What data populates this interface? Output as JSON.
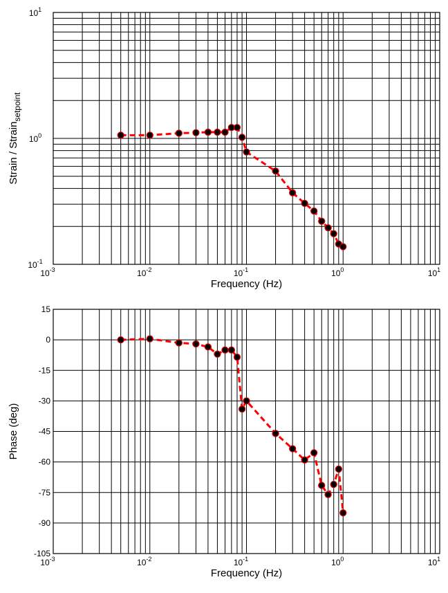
{
  "chart_data": [
    {
      "type": "line",
      "scale": {
        "x": "log",
        "y": "log"
      },
      "xlabel": "Frequency (Hz)",
      "ylabel": {
        "main": "Strain / Strain",
        "subscript": "setpoint"
      },
      "xlim": [
        0.001,
        10
      ],
      "ylim": [
        0.1,
        10
      ],
      "grid": true,
      "x_ticks": [
        {
          "base": "10",
          "exp": "-3"
        },
        {
          "base": "10",
          "exp": "-2"
        },
        {
          "base": "10",
          "exp": "-1"
        },
        {
          "base": "10",
          "exp": "0"
        },
        {
          "base": "10",
          "exp": "1"
        }
      ],
      "y_ticks": [
        {
          "base": "10",
          "exp": "-1"
        },
        {
          "base": "10",
          "exp": "0"
        },
        {
          "base": "10",
          "exp": "1"
        }
      ],
      "series": [
        {
          "style": {
            "line_color": "#ff0000",
            "line_style": "dashed",
            "marker": "circle",
            "marker_color": "#000000",
            "marker_edge": "#cc0000"
          },
          "x": [
            0.005,
            0.01,
            0.02,
            0.03,
            0.04,
            0.05,
            0.06,
            0.07,
            0.08,
            0.09,
            0.1,
            0.2,
            0.3,
            0.4,
            0.5,
            0.6,
            0.7,
            0.8,
            0.9,
            1.0
          ],
          "y": [
            1.06,
            1.06,
            1.1,
            1.11,
            1.12,
            1.12,
            1.12,
            1.22,
            1.22,
            1.02,
            0.78,
            0.55,
            0.37,
            0.305,
            0.265,
            0.22,
            0.195,
            0.175,
            0.145,
            0.138
          ]
        }
      ]
    },
    {
      "type": "line",
      "scale": {
        "x": "log",
        "y": "linear"
      },
      "xlabel": "Frequency (Hz)",
      "ylabel": "Phase (deg)",
      "xlim": [
        0.001,
        10
      ],
      "ylim": [
        -105,
        15
      ],
      "grid": true,
      "x_ticks": [
        {
          "base": "10",
          "exp": "-3"
        },
        {
          "base": "10",
          "exp": "-2"
        },
        {
          "base": "10",
          "exp": "-1"
        },
        {
          "base": "10",
          "exp": "0"
        },
        {
          "base": "10",
          "exp": "1"
        }
      ],
      "y_ticks": [
        "15",
        "0",
        "-15",
        "-30",
        "-45",
        "-60",
        "-75",
        "-90",
        "-105"
      ],
      "series": [
        {
          "style": {
            "line_color": "#ff0000",
            "line_style": "dashed",
            "marker": "circle",
            "marker_color": "#000000",
            "marker_edge": "#cc0000"
          },
          "x": [
            0.005,
            0.01,
            0.02,
            0.03,
            0.04,
            0.05,
            0.06,
            0.07,
            0.08,
            0.09,
            0.1,
            0.2,
            0.3,
            0.4,
            0.5,
            0.6,
            0.7,
            0.8,
            0.9,
            1.0
          ],
          "y": [
            0,
            0.5,
            -1.5,
            -2,
            -3.5,
            -7,
            -5,
            -5,
            -8.5,
            -34,
            -30,
            -46,
            -53.5,
            -59,
            -55.5,
            -71.5,
            -76,
            -71,
            -63.5,
            -85
          ]
        }
      ]
    }
  ]
}
